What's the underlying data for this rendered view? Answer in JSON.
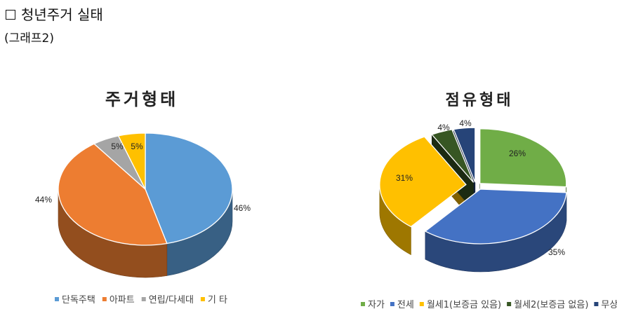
{
  "page": {
    "heading": "청년주거 실태",
    "subheading": "(그래프2)"
  },
  "chart_data": [
    {
      "type": "pie",
      "title": "주거형태",
      "categories": [
        "단독주택",
        "아파트",
        "연립/다세대",
        "기 타"
      ],
      "values": [
        46,
        44,
        5,
        5
      ],
      "labels": [
        "46%",
        "44%",
        "5%",
        "5%"
      ],
      "colors": [
        "#5b9bd5",
        "#ed7d31",
        "#a5a5a5",
        "#ffc000"
      ],
      "legend": "bottom",
      "style": "3d"
    },
    {
      "type": "pie",
      "title": "점유형태",
      "categories": [
        "자가",
        "전세",
        "월세1(보증금 있음)",
        "월세2(보증금 없음)",
        "무상"
      ],
      "values": [
        26,
        35,
        31,
        4,
        4
      ],
      "labels": [
        "26%",
        "35%",
        "31%",
        "4%",
        "4%"
      ],
      "colors": [
        "#70ad47",
        "#4472c4",
        "#ffc000",
        "#375623",
        "#264478"
      ],
      "legend": "bottom",
      "style": "3d"
    }
  ]
}
